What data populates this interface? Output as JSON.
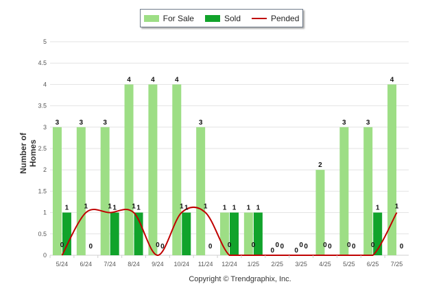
{
  "chart_data": {
    "type": "bar",
    "categories": [
      "5/24",
      "6/24",
      "7/24",
      "8/24",
      "9/24",
      "10/24",
      "11/24",
      "12/24",
      "1/25",
      "2/25",
      "3/25",
      "4/25",
      "5/25",
      "6/25",
      "7/25"
    ],
    "series": [
      {
        "name": "For Sale",
        "type": "bar",
        "color": "#9dde85",
        "values": [
          3,
          3,
          3,
          4,
          4,
          4,
          3,
          1,
          1,
          0,
          0,
          2,
          3,
          3,
          4
        ]
      },
      {
        "name": "Sold",
        "type": "bar",
        "color": "#11a32b",
        "values": [
          1,
          0,
          1,
          1,
          0,
          1,
          0,
          1,
          1,
          0,
          0,
          0,
          0,
          1,
          0
        ]
      },
      {
        "name": "Pended",
        "type": "line",
        "color": "#c00000",
        "values": [
          0,
          1,
          1,
          1,
          0,
          1,
          1,
          0,
          0,
          0,
          0,
          0,
          0,
          0,
          1
        ]
      }
    ],
    "ylabel": "Number of Homes",
    "ylim": [
      0,
      5
    ],
    "yticks": [
      "0",
      "0.5",
      "1",
      "1.5",
      "2",
      "2.5",
      "3",
      "3.5",
      "4",
      "4.5",
      "5"
    ],
    "grid": true,
    "legend_position": "top-center"
  },
  "footer": {
    "copyright": "Copyright © Trendgraphix, Inc."
  }
}
